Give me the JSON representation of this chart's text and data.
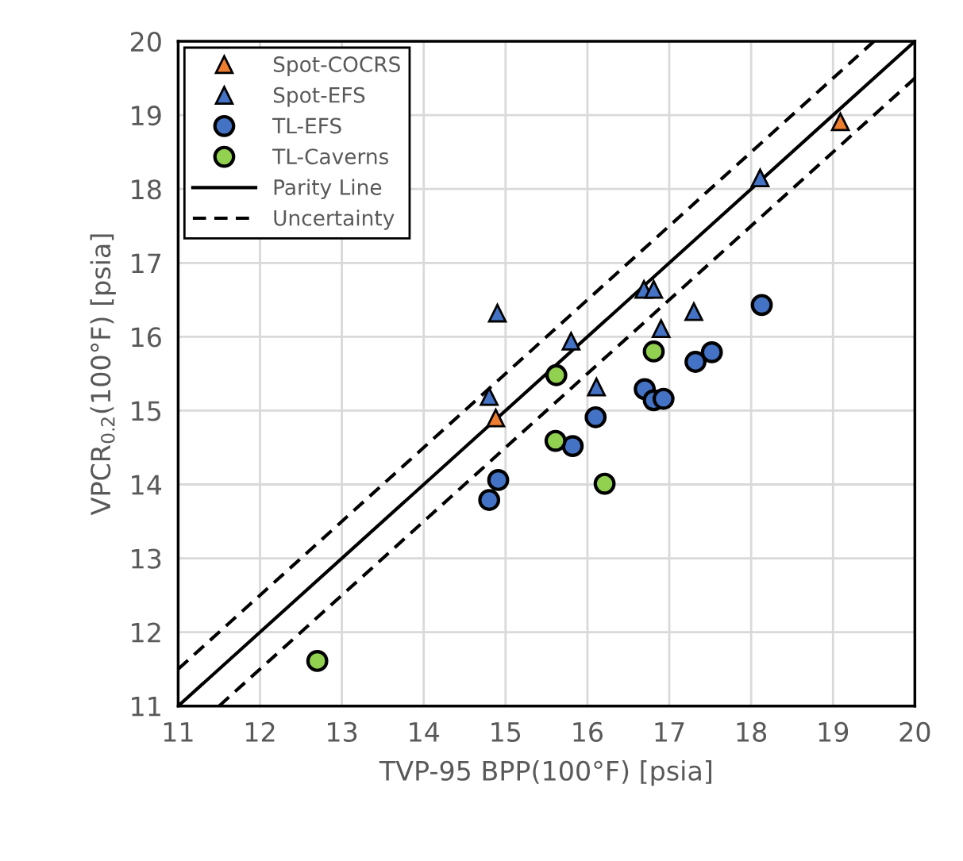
{
  "chart_data": {
    "type": "scatter",
    "xlabel": "TVP-95 BPP(100°F) [psia]",
    "ylabel": "VPCR$_{0.2}$(100°F) [psia]",
    "xlim": [
      11,
      20
    ],
    "ylim": [
      11,
      20
    ],
    "xticks": [
      11,
      12,
      13,
      14,
      15,
      16,
      17,
      18,
      19,
      20
    ],
    "yticks": [
      11,
      12,
      13,
      14,
      15,
      16,
      17,
      18,
      19,
      20
    ],
    "grid": true,
    "legend": "top left",
    "series": [
      {
        "name": "Spot-COCRS",
        "marker": "triangle",
        "color": "#ed7d31",
        "x": [
          14.88,
          19.09
        ],
        "values": [
          14.9,
          18.91
        ]
      },
      {
        "name": "Spot-EFS",
        "marker": "triangle",
        "color": "#4472c4",
        "x": [
          14.9,
          14.8,
          15.8,
          16.11,
          16.69,
          16.81,
          16.9,
          17.3,
          18.11
        ],
        "values": [
          16.32,
          15.19,
          15.94,
          15.32,
          16.64,
          16.64,
          16.11,
          16.34,
          18.15
        ]
      },
      {
        "name": "TL-EFS",
        "marker": "circle",
        "color": "#4472c4",
        "x": [
          14.8,
          14.91,
          15.82,
          16.1,
          16.7,
          16.81,
          16.93,
          17.32,
          17.52,
          18.13
        ],
        "values": [
          13.79,
          14.06,
          14.52,
          14.91,
          15.29,
          15.14,
          15.16,
          15.66,
          15.79,
          16.43
        ]
      },
      {
        "name": "TL-Caverns",
        "marker": "circle",
        "color": "#92d050",
        "x": [
          12.7,
          15.62,
          15.61,
          16.21,
          16.81
        ],
        "values": [
          11.61,
          15.48,
          14.59,
          14.01,
          15.8
        ]
      },
      {
        "name": "Parity Line",
        "type": "line",
        "marker": "none",
        "line_style": "solid",
        "color": "#000000",
        "x": [
          11,
          20
        ],
        "values": [
          11,
          20
        ]
      },
      {
        "name": "Uncertainty",
        "type": "line",
        "marker": "none",
        "line_style": "dashed",
        "color": "#000000",
        "x": [
          11,
          19.5
        ],
        "values": [
          11.5,
          20
        ]
      },
      {
        "type": "line",
        "marker": "none",
        "line_style": "dashed",
        "color": "#000000",
        "x": [
          11.5,
          20
        ],
        "values": [
          11,
          19.5
        ]
      }
    ]
  }
}
